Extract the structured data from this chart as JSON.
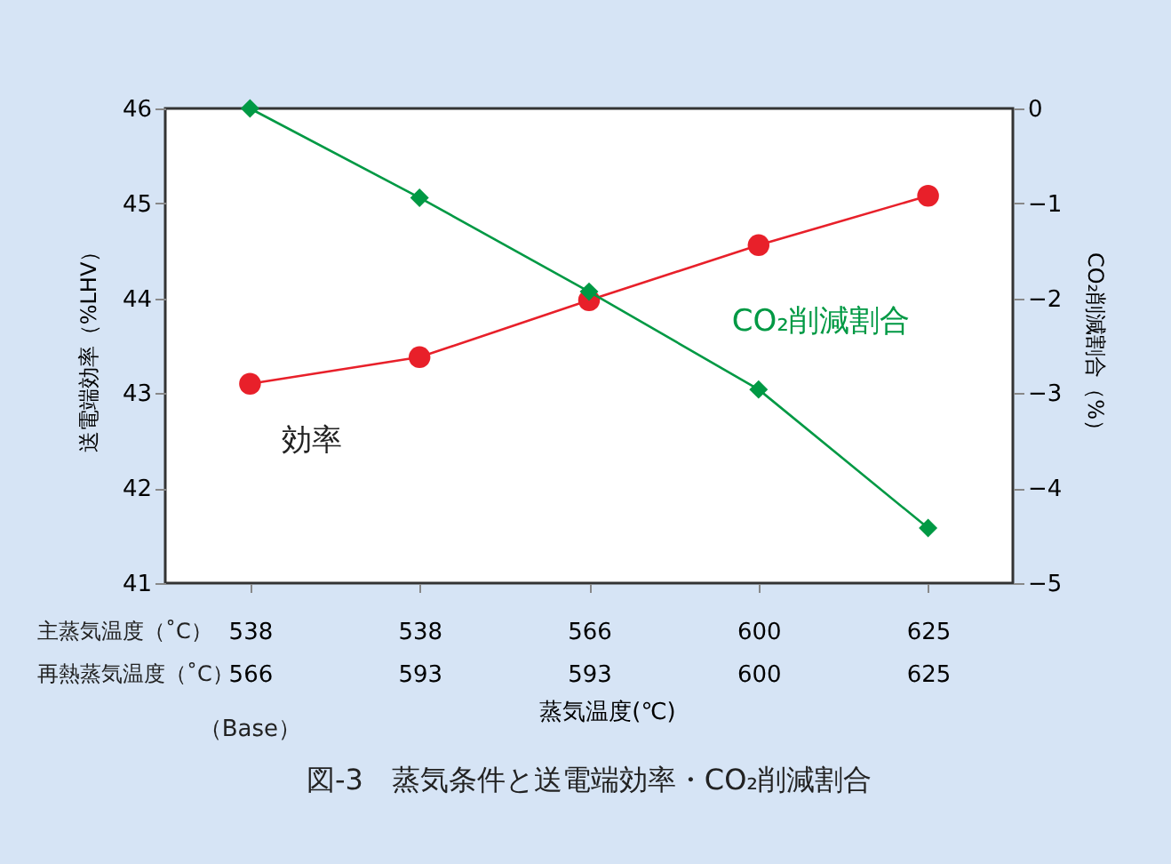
{
  "chart_data": {
    "type": "line",
    "title": "図-3　蒸気条件と送電端効率・CO₂削減割合",
    "xlabel": "蒸気温度(℃)",
    "ylabel": "送電端効率（%LHV）",
    "y2label": "CO₂削減割合（%）",
    "categories": [
      "538\n566",
      "538\n593",
      "566\n593",
      "600\n600",
      "625\n625"
    ],
    "series": [
      {
        "name": "効率",
        "color": "#e8202a",
        "marker": "circle",
        "values": [
          43.1,
          43.38,
          43.98,
          44.56,
          45.08
        ]
      },
      {
        "name": "CO₂削減割合",
        "color": "#009944",
        "marker": "diamond",
        "axis": "y2",
        "values": [
          0,
          -0.94,
          -1.93,
          -2.96,
          -4.42
        ]
      }
    ],
    "ylim": [
      41,
      46
    ],
    "yticks": [
      41,
      42,
      43,
      44,
      45,
      46
    ],
    "y2lim": [
      -5,
      0
    ],
    "y2ticks": [
      -5,
      -4,
      -3,
      -2,
      -1,
      0
    ],
    "annotations": [
      "主蒸気温度（˚C）",
      "再熱蒸気温度（˚C）",
      "（Base）"
    ],
    "grid": false,
    "line_style": "solid"
  }
}
